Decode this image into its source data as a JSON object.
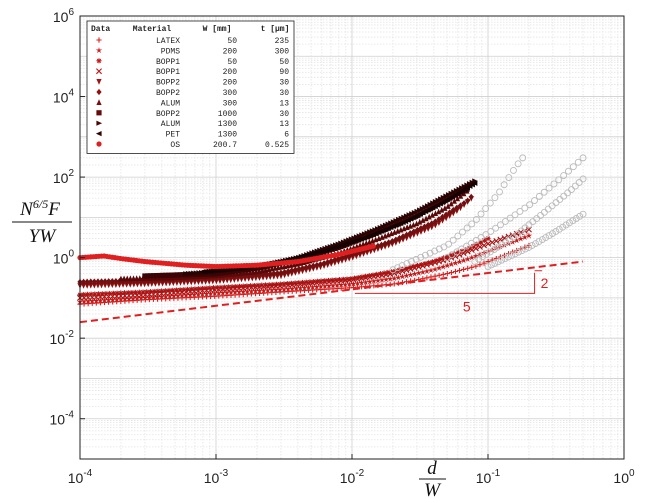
{
  "chart_data": {
    "type": "scatter",
    "xscale": "log",
    "yscale": "log",
    "xlim": [
      0.0001,
      1
    ],
    "ylim": [
      1e-05,
      1000000
    ],
    "grid": true,
    "legend_position": "top-left",
    "x_ticks": [
      {
        "value": 0.0001,
        "base": "10",
        "exp": "-4"
      },
      {
        "value": 0.001,
        "base": "10",
        "exp": "-3"
      },
      {
        "value": 0.01,
        "base": "10",
        "exp": "-2"
      },
      {
        "value": 0.1,
        "base": "10",
        "exp": "-1"
      },
      {
        "value": 1,
        "base": "10",
        "exp": "0"
      }
    ],
    "y_ticks": [
      {
        "value": 0.0001,
        "base": "10",
        "exp": "-4"
      },
      {
        "value": 0.01,
        "base": "10",
        "exp": "-2"
      },
      {
        "value": 1,
        "base": "10",
        "exp": "0"
      },
      {
        "value": 100,
        "base": "10",
        "exp": "2"
      },
      {
        "value": 10000,
        "base": "10",
        "exp": "4"
      },
      {
        "value": 1000000,
        "base": "10",
        "exp": "6"
      }
    ],
    "xlabel": {
      "num": "d",
      "den": "W"
    },
    "ylabel": {
      "num_prefix": "N",
      "num_sup": "6/5",
      "num_suffix": "F",
      "den": "YW"
    },
    "legend_headers": [
      "Data",
      "Material",
      "W [mm]",
      "t [μm]"
    ],
    "series": [
      {
        "marker": "+",
        "material": "LATEX",
        "W": "50",
        "t": "235",
        "color": "#e02020"
      },
      {
        "marker": "★",
        "material": "PDMS",
        "W": "200",
        "t": "300",
        "color": "#d81c1c"
      },
      {
        "marker": "✱",
        "material": "BOPP1",
        "W": "50",
        "t": "50",
        "color": "#cc1818"
      },
      {
        "marker": "×",
        "material": "BOPP1",
        "W": "200",
        "t": "90",
        "color": "#c01616"
      },
      {
        "marker": "▼",
        "material": "BOPP2",
        "W": "200",
        "t": "30",
        "color": "#a81212"
      },
      {
        "marker": "◆",
        "material": "BOPP2",
        "W": "300",
        "t": "30",
        "color": "#941010"
      },
      {
        "marker": "▲",
        "material": "ALUM",
        "W": "300",
        "t": "13",
        "color": "#7e0d0d"
      },
      {
        "marker": "■",
        "material": "BOPP2",
        "W": "1000",
        "t": "30",
        "color": "#660a0a"
      },
      {
        "marker": "▶",
        "material": "ALUM",
        "W": "1300",
        "t": "13",
        "color": "#4c0707"
      },
      {
        "marker": "◀",
        "material": "PET",
        "W": "1300",
        "t": "6",
        "color": "#300404"
      },
      {
        "marker": "●",
        "material": "OS",
        "W": "200.7",
        "t": "0.525",
        "color": "#e02020"
      }
    ],
    "reference_line": {
      "x": [
        0.0001,
        0.5
      ],
      "y": [
        0.025,
        0.8
      ],
      "color": "#e02020",
      "style": "dashed"
    },
    "slope_triangle": {
      "run_label": "5",
      "rise_label": "2",
      "color": "#e02020"
    },
    "curves": [
      {
        "color": "#d92020",
        "marker": "+",
        "pts": [
          [
            0.0001,
            0.07
          ],
          [
            0.0003,
            0.09
          ],
          [
            0.001,
            0.11
          ],
          [
            0.003,
            0.14
          ],
          [
            0.01,
            0.18
          ],
          [
            0.02,
            0.22
          ],
          [
            0.03,
            0.28
          ],
          [
            0.05,
            0.4
          ],
          [
            0.08,
            0.6
          ],
          [
            0.12,
            1.0
          ],
          [
            0.2,
            2.0
          ]
        ]
      },
      {
        "color": "#c41818",
        "marker": "★",
        "pts": [
          [
            0.0001,
            0.08
          ],
          [
            0.0003,
            0.1
          ],
          [
            0.001,
            0.13
          ],
          [
            0.003,
            0.16
          ],
          [
            0.01,
            0.22
          ],
          [
            0.02,
            0.3
          ],
          [
            0.04,
            0.5
          ],
          [
            0.07,
            0.9
          ],
          [
            0.12,
            1.8
          ],
          [
            0.2,
            3.5
          ]
        ]
      },
      {
        "color": "#b01414",
        "marker": "✱",
        "pts": [
          [
            0.0001,
            0.12
          ],
          [
            0.0003,
            0.14
          ],
          [
            0.001,
            0.18
          ],
          [
            0.003,
            0.22
          ],
          [
            0.01,
            0.3
          ],
          [
            0.02,
            0.45
          ],
          [
            0.04,
            0.8
          ],
          [
            0.07,
            1.6
          ],
          [
            0.1,
            3.0
          ]
        ]
      },
      {
        "color": "#a81212",
        "marker": "×",
        "pts": [
          [
            0.0001,
            0.1
          ],
          [
            0.0003,
            0.12
          ],
          [
            0.001,
            0.16
          ],
          [
            0.003,
            0.2
          ],
          [
            0.01,
            0.28
          ],
          [
            0.02,
            0.4
          ],
          [
            0.05,
            0.9
          ],
          [
            0.1,
            2.2
          ],
          [
            0.2,
            5.0
          ]
        ]
      },
      {
        "color": "#8a0f0f",
        "marker": "▼",
        "pts": [
          [
            0.0001,
            0.2
          ],
          [
            0.0003,
            0.22
          ],
          [
            0.001,
            0.26
          ],
          [
            0.003,
            0.35
          ],
          [
            0.006,
            0.6
          ],
          [
            0.01,
            1.0
          ],
          [
            0.02,
            2.2
          ],
          [
            0.04,
            6.0
          ],
          [
            0.06,
            15
          ],
          [
            0.08,
            35
          ]
        ]
      },
      {
        "color": "#701010",
        "marker": "◆",
        "pts": [
          [
            0.0001,
            0.25
          ],
          [
            0.0003,
            0.27
          ],
          [
            0.001,
            0.32
          ],
          [
            0.003,
            0.42
          ],
          [
            0.006,
            0.7
          ],
          [
            0.01,
            1.2
          ],
          [
            0.02,
            2.6
          ],
          [
            0.04,
            7.5
          ],
          [
            0.07,
            25
          ],
          [
            0.08,
            40
          ]
        ]
      },
      {
        "color": "#5a0808",
        "marker": "▲",
        "pts": [
          [
            0.0002,
            0.3
          ],
          [
            0.0005,
            0.32
          ],
          [
            0.001,
            0.36
          ],
          [
            0.002,
            0.45
          ],
          [
            0.004,
            0.7
          ],
          [
            0.008,
            1.3
          ],
          [
            0.015,
            2.8
          ],
          [
            0.03,
            7.0
          ],
          [
            0.05,
            18
          ],
          [
            0.07,
            45
          ]
        ]
      },
      {
        "color": "#3c0505",
        "marker": "■",
        "pts": [
          [
            0.0003,
            0.35
          ],
          [
            0.001,
            0.4
          ],
          [
            0.002,
            0.55
          ],
          [
            0.004,
            0.9
          ],
          [
            0.008,
            1.8
          ],
          [
            0.015,
            4.0
          ],
          [
            0.03,
            11
          ],
          [
            0.05,
            28
          ],
          [
            0.07,
            50
          ]
        ]
      },
      {
        "color": "#2a0303",
        "marker": "▶",
        "pts": [
          [
            0.0006,
            0.4
          ],
          [
            0.001,
            0.45
          ],
          [
            0.002,
            0.6
          ],
          [
            0.004,
            1.0
          ],
          [
            0.008,
            2.2
          ],
          [
            0.015,
            5.0
          ],
          [
            0.03,
            14
          ],
          [
            0.05,
            35
          ],
          [
            0.08,
            80
          ]
        ]
      },
      {
        "color": "#150202",
        "marker": "◀",
        "pts": [
          [
            0.0008,
            0.45
          ],
          [
            0.0015,
            0.55
          ],
          [
            0.003,
            0.8
          ],
          [
            0.006,
            1.4
          ],
          [
            0.012,
            3.0
          ],
          [
            0.025,
            8.0
          ],
          [
            0.045,
            22
          ],
          [
            0.08,
            70
          ]
        ]
      },
      {
        "color": "#e02020",
        "marker": "●",
        "pts": [
          [
            0.0001,
            1.0
          ],
          [
            0.00015,
            1.1
          ],
          [
            0.0002,
            0.95
          ],
          [
            0.0003,
            0.8
          ],
          [
            0.0006,
            0.65
          ],
          [
            0.001,
            0.6
          ],
          [
            0.002,
            0.65
          ],
          [
            0.004,
            0.8
          ],
          [
            0.008,
            1.2
          ],
          [
            0.015,
            2.0
          ]
        ]
      },
      {
        "color": "#bbbbbb",
        "marker": "○",
        "pts": [
          [
            0.02,
            0.5
          ],
          [
            0.05,
            2.0
          ],
          [
            0.08,
            8
          ],
          [
            0.12,
            40
          ],
          [
            0.16,
            180
          ],
          [
            0.18,
            300
          ]
        ]
      },
      {
        "color": "#bbbbbb",
        "marker": "○",
        "pts": [
          [
            0.05,
            1.0
          ],
          [
            0.1,
            4.0
          ],
          [
            0.2,
            20
          ],
          [
            0.35,
            100
          ],
          [
            0.5,
            300
          ]
        ]
      },
      {
        "color": "#bbbbbb",
        "marker": "○",
        "pts": [
          [
            0.08,
            0.8
          ],
          [
            0.15,
            3.0
          ],
          [
            0.25,
            12
          ],
          [
            0.4,
            45
          ],
          [
            0.5,
            90
          ]
        ]
      },
      {
        "color": "#bbbbbb",
        "marker": "○",
        "pts": [
          [
            0.1,
            0.6
          ],
          [
            0.2,
            1.8
          ],
          [
            0.3,
            4.0
          ],
          [
            0.5,
            12
          ]
        ]
      }
    ]
  }
}
